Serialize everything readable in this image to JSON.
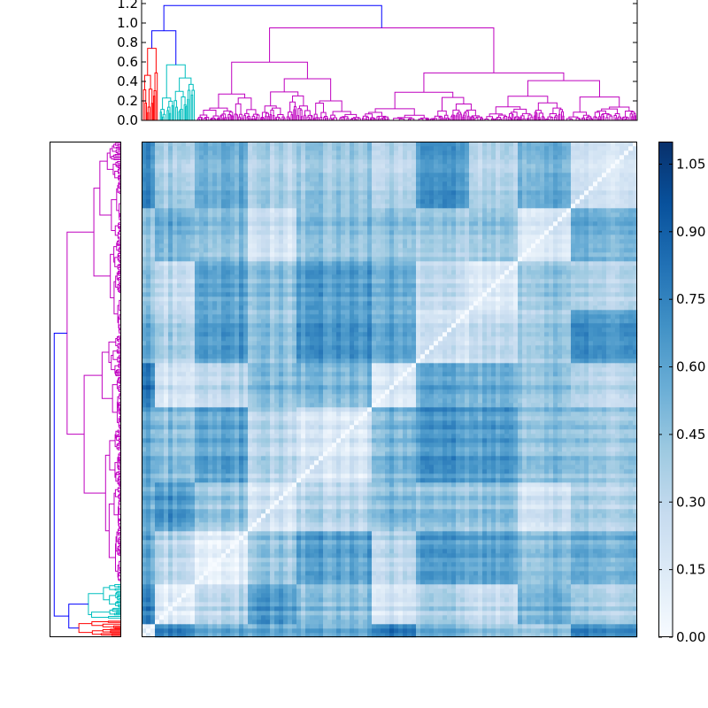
{
  "chart_data": [
    {
      "type": "dendrogram",
      "orientation": "top",
      "title": "",
      "xlabel": "",
      "ylabel": "",
      "ylim": [
        0,
        1.2
      ],
      "yticks": [
        0.0,
        0.2,
        0.4,
        0.6,
        0.8,
        1.0,
        1.2
      ],
      "ytick_labels": [
        "0.0",
        "0.2",
        "0.4",
        "0.6",
        "0.8",
        "1.0",
        "1.2"
      ],
      "root_height": 1.18,
      "clusters": [
        {
          "color": "#ff0000",
          "top": 0.74,
          "leaf_fraction": 0.035
        },
        {
          "color": "#00bfbf",
          "top": 0.57,
          "leaf_fraction": 0.075
        },
        {
          "color": "#bf00bf",
          "top": 0.95,
          "leaf_fraction": 0.89
        }
      ],
      "link_color": "#0000ff",
      "grid": false
    },
    {
      "type": "dendrogram",
      "orientation": "left",
      "title": "",
      "clusters": [
        {
          "color": "#ff0000"
        },
        {
          "color": "#00bfbf"
        },
        {
          "color": "#bf00bf"
        }
      ],
      "link_color": "#0000ff",
      "tick_labels_shown": false
    },
    {
      "type": "heatmap",
      "title": "",
      "xlabel": "",
      "ylabel": "",
      "colormap": "Blues",
      "diagonal_value": 0.0,
      "value_range": [
        0.0,
        1.1
      ],
      "block_boundaries": [
        0.0,
        0.03,
        0.11,
        0.215,
        0.31,
        0.46,
        0.555,
        0.665,
        0.76,
        0.87,
        1.0
      ],
      "grid": false
    },
    {
      "type": "colorbar",
      "colormap": "Blues",
      "range": [
        0.0,
        1.1
      ],
      "ticks": [
        0.0,
        0.15,
        0.3,
        0.45,
        0.6,
        0.75,
        0.9,
        1.05
      ],
      "tick_labels": [
        "0.00",
        "0.15",
        "0.30",
        "0.45",
        "0.60",
        "0.75",
        "0.90",
        "1.05"
      ]
    }
  ]
}
